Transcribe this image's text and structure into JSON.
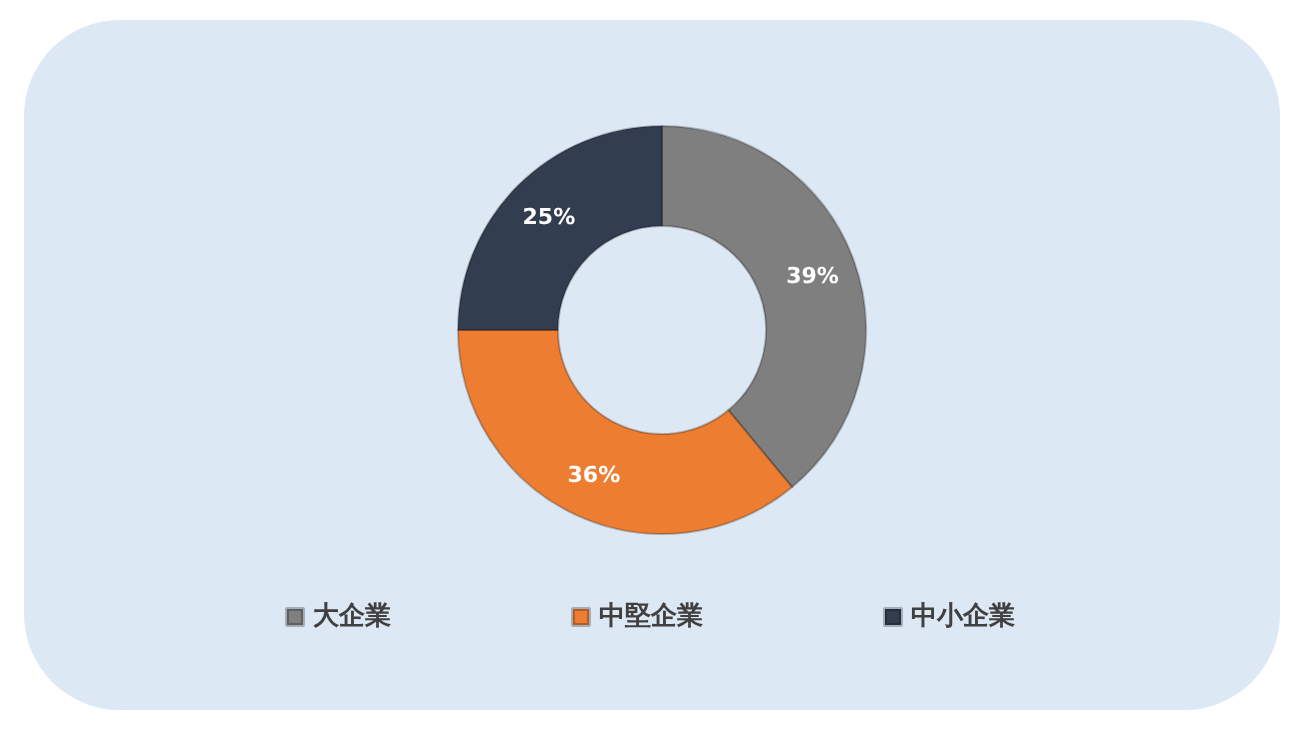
{
  "chart_data": {
    "type": "donut",
    "categories": [
      "大企業",
      "中堅企業",
      "中小企業"
    ],
    "values": [
      39,
      36,
      25
    ],
    "colors": [
      "#7f7f7f",
      "#ed7d31",
      "#323e50"
    ],
    "value_labels": [
      "39%",
      "36%",
      "25%"
    ],
    "legend": "bottom"
  }
}
